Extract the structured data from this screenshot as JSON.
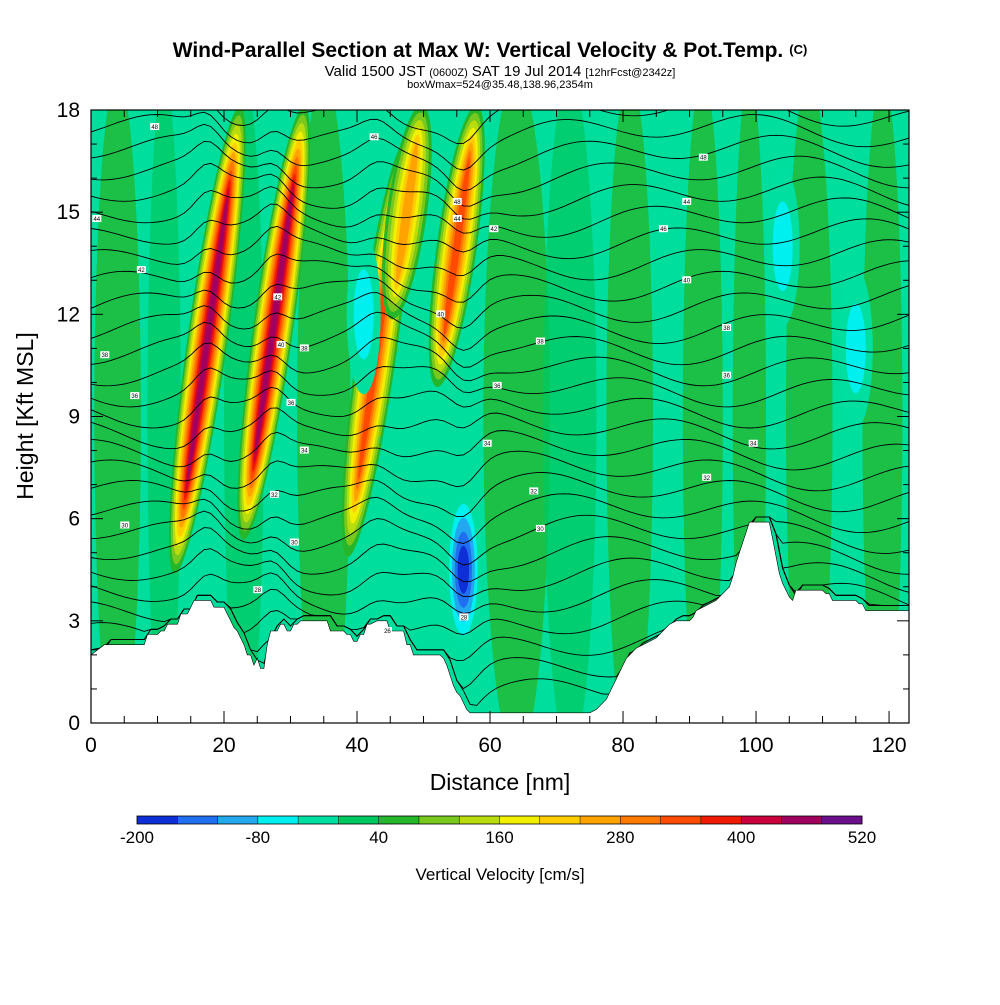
{
  "chart_data": {
    "type": "contour",
    "title": "Wind-Parallel Section at Max W: Vertical Velocity & Pot.Temp.",
    "title_mark": "(C)",
    "subtitle": {
      "valid_prefix": "Valid 1500 JST",
      "utc": "(0600Z)",
      "date": "SAT 19 Jul 2014",
      "forecast": "[12hrFcst@2342z]"
    },
    "subtitle2": "boxWmax=524@35.48,138.96,2354m",
    "xlabel": "Distance [nm]",
    "ylabel": "Height [Kft MSL]",
    "xlim": [
      0,
      123
    ],
    "ylim": [
      0,
      18
    ],
    "x_ticks": [
      "0",
      "20",
      "40",
      "60",
      "80",
      "100",
      "120"
    ],
    "y_ticks": [
      "0",
      "3",
      "6",
      "9",
      "12",
      "15",
      "18"
    ],
    "colorbar": {
      "label": "Vertical Velocity [cm/s]",
      "tick_labels": [
        "-200",
        "-80",
        "40",
        "160",
        "280",
        "400",
        "520"
      ],
      "colors": [
        "#0f2fd6",
        "#1f6ff0",
        "#23a8f0",
        "#00f0f0",
        "#00dea0",
        "#00c860",
        "#25b62a",
        "#78c81e",
        "#b9dc0f",
        "#f0f000",
        "#ffcd00",
        "#ffa300",
        "#ff7800",
        "#ff4a00",
        "#f01a00",
        "#c8003c",
        "#a0005f",
        "#6b0f8a"
      ]
    },
    "updrafts": [
      {
        "x": 17.5,
        "y_bottom": 4.5,
        "y_top": 18,
        "value": 440
      },
      {
        "x": 27.5,
        "y_bottom": 5.5,
        "y_top": 18,
        "value": 420
      },
      {
        "x": 43.0,
        "y_bottom": 5.0,
        "y_top": 17,
        "value": 300
      },
      {
        "x": 47.5,
        "y_bottom": 12.0,
        "y_top": 18,
        "value": 230
      },
      {
        "x": 55.0,
        "y_bottom": 10.0,
        "y_top": 18,
        "value": 330
      }
    ],
    "downdrafts": [
      {
        "x": 56.0,
        "y": 4.5,
        "value": -200
      },
      {
        "x": 41.0,
        "y": 12.0,
        "value": -80
      },
      {
        "x": 104.0,
        "y": 14.0,
        "value": -80
      },
      {
        "x": 115.0,
        "y": 11.0,
        "value": -80
      }
    ],
    "theta_contour_labels": [
      {
        "x": 9.5,
        "y": 17.5,
        "text": "48"
      },
      {
        "x": 42.5,
        "y": 17.2,
        "text": "46"
      },
      {
        "x": 92.0,
        "y": 16.6,
        "text": "48"
      },
      {
        "x": 0.8,
        "y": 14.8,
        "text": "44"
      },
      {
        "x": 7.5,
        "y": 13.3,
        "text": "42"
      },
      {
        "x": 2.0,
        "y": 10.8,
        "text": "38"
      },
      {
        "x": 6.5,
        "y": 9.6,
        "text": "36"
      },
      {
        "x": 5.0,
        "y": 5.8,
        "text": "30"
      },
      {
        "x": 25.0,
        "y": 3.9,
        "text": "28"
      },
      {
        "x": 27.5,
        "y": 6.7,
        "text": "32"
      },
      {
        "x": 28.0,
        "y": 12.5,
        "text": "42"
      },
      {
        "x": 28.5,
        "y": 11.1,
        "text": "40"
      },
      {
        "x": 32.0,
        "y": 11.0,
        "text": "38"
      },
      {
        "x": 30.0,
        "y": 9.4,
        "text": "36"
      },
      {
        "x": 32.0,
        "y": 8.0,
        "text": "34"
      },
      {
        "x": 30.5,
        "y": 5.3,
        "text": "30"
      },
      {
        "x": 55.0,
        "y": 15.3,
        "text": "48"
      },
      {
        "x": 55.0,
        "y": 14.8,
        "text": "44"
      },
      {
        "x": 60.5,
        "y": 14.5,
        "text": "42"
      },
      {
        "x": 52.5,
        "y": 12.0,
        "text": "40"
      },
      {
        "x": 67.5,
        "y": 11.2,
        "text": "38"
      },
      {
        "x": 61.0,
        "y": 9.9,
        "text": "36"
      },
      {
        "x": 59.5,
        "y": 8.2,
        "text": "34"
      },
      {
        "x": 66.5,
        "y": 6.8,
        "text": "32"
      },
      {
        "x": 67.5,
        "y": 5.7,
        "text": "30"
      },
      {
        "x": 56.0,
        "y": 3.1,
        "text": "28"
      },
      {
        "x": 44.5,
        "y": 2.7,
        "text": "26"
      },
      {
        "x": 86.0,
        "y": 14.5,
        "text": "46"
      },
      {
        "x": 89.5,
        "y": 15.3,
        "text": "44"
      },
      {
        "x": 89.5,
        "y": 13.0,
        "text": "40"
      },
      {
        "x": 95.5,
        "y": 11.6,
        "text": "38"
      },
      {
        "x": 95.5,
        "y": 10.2,
        "text": "36"
      },
      {
        "x": 99.5,
        "y": 8.2,
        "text": "34"
      },
      {
        "x": 92.5,
        "y": 7.2,
        "text": "32"
      }
    ],
    "terrain_nm_kft": [
      [
        0,
        2.0
      ],
      [
        2,
        2.3
      ],
      [
        8,
        2.3
      ],
      [
        8.5,
        2.6
      ],
      [
        10,
        2.6
      ],
      [
        10.5,
        2.7
      ],
      [
        11,
        2.7
      ],
      [
        11.5,
        2.9
      ],
      [
        13,
        2.9
      ],
      [
        13.5,
        3.2
      ],
      [
        14.5,
        3.2
      ],
      [
        15,
        3.4
      ],
      [
        15.5,
        3.6
      ],
      [
        18,
        3.6
      ],
      [
        18.5,
        3.4
      ],
      [
        20,
        3.4
      ],
      [
        20.5,
        3.2
      ],
      [
        21,
        3.0
      ],
      [
        21.5,
        2.8
      ],
      [
        22,
        2.7
      ],
      [
        22.5,
        2.5
      ],
      [
        23,
        2.3
      ],
      [
        23.5,
        2.0
      ],
      [
        24,
        2.0
      ],
      [
        24.5,
        1.7
      ],
      [
        25,
        1.9
      ],
      [
        25.5,
        1.6
      ],
      [
        26,
        1.6
      ],
      [
        26.5,
        2.3
      ],
      [
        27,
        2.7
      ],
      [
        28,
        2.7
      ],
      [
        28.5,
        2.9
      ],
      [
        29,
        2.9
      ],
      [
        29.5,
        2.7
      ],
      [
        30,
        2.7
      ],
      [
        30.5,
        2.9
      ],
      [
        31,
        2.9
      ],
      [
        31.5,
        3.0
      ],
      [
        35.5,
        3.0
      ],
      [
        36,
        2.7
      ],
      [
        38,
        2.7
      ],
      [
        38.5,
        2.6
      ],
      [
        39,
        2.6
      ],
      [
        39.5,
        2.4
      ],
      [
        40,
        2.4
      ],
      [
        40.5,
        2.6
      ],
      [
        41,
        2.6
      ],
      [
        41.5,
        2.9
      ],
      [
        42,
        2.9
      ],
      [
        43,
        3.0
      ],
      [
        44.5,
        3.0
      ],
      [
        45,
        2.7
      ],
      [
        47,
        2.7
      ],
      [
        47.5,
        2.3
      ],
      [
        48,
        2.3
      ],
      [
        48.5,
        2.0
      ],
      [
        52.5,
        2.0
      ],
      [
        53,
        1.9
      ],
      [
        53.5,
        1.7
      ],
      [
        54,
        1.4
      ],
      [
        54.5,
        1.1
      ],
      [
        55,
        0.9
      ],
      [
        55.5,
        0.8
      ],
      [
        56,
        0.6
      ],
      [
        56.5,
        0.4
      ],
      [
        57,
        0.3
      ],
      [
        57.5,
        0.3
      ],
      [
        60,
        0.3
      ],
      [
        70,
        0.3
      ],
      [
        75,
        0.3
      ],
      [
        76,
        0.4
      ],
      [
        77,
        0.6
      ],
      [
        77.5,
        0.7
      ],
      [
        78,
        0.9
      ],
      [
        78.5,
        1.1
      ],
      [
        79,
        1.3
      ],
      [
        79.5,
        1.5
      ],
      [
        80,
        1.7
      ],
      [
        80.5,
        1.9
      ],
      [
        81,
        2.0
      ],
      [
        82,
        2.2
      ],
      [
        83,
        2.3
      ],
      [
        84,
        2.4
      ],
      [
        85,
        2.5
      ],
      [
        86,
        2.7
      ],
      [
        87,
        2.9
      ],
      [
        88,
        3.0
      ],
      [
        89,
        3.0
      ],
      [
        90,
        3.0
      ],
      [
        90.5,
        3.1
      ],
      [
        91,
        3.3
      ],
      [
        92,
        3.4
      ],
      [
        93,
        3.5
      ],
      [
        94,
        3.6
      ],
      [
        95,
        3.8
      ],
      [
        96,
        4.0
      ],
      [
        96.5,
        4.3
      ],
      [
        97,
        4.7
      ],
      [
        97.5,
        5.0
      ],
      [
        98,
        5.3
      ],
      [
        98.5,
        5.6
      ],
      [
        99,
        5.9
      ],
      [
        102,
        5.9
      ],
      [
        102.5,
        5.4
      ],
      [
        103,
        4.9
      ],
      [
        103.5,
        4.4
      ],
      [
        104,
        4.1
      ],
      [
        104.5,
        3.9
      ],
      [
        105,
        3.7
      ],
      [
        105.5,
        3.6
      ],
      [
        106,
        3.9
      ],
      [
        110,
        3.9
      ],
      [
        110.5,
        3.8
      ],
      [
        111,
        3.8
      ],
      [
        111.5,
        3.6
      ],
      [
        115,
        3.6
      ],
      [
        115.5,
        3.5
      ],
      [
        116,
        3.5
      ],
      [
        116.5,
        3.3
      ],
      [
        117,
        3.3
      ],
      [
        118,
        3.3
      ],
      [
        120,
        3.3
      ],
      [
        123,
        3.3
      ]
    ]
  }
}
